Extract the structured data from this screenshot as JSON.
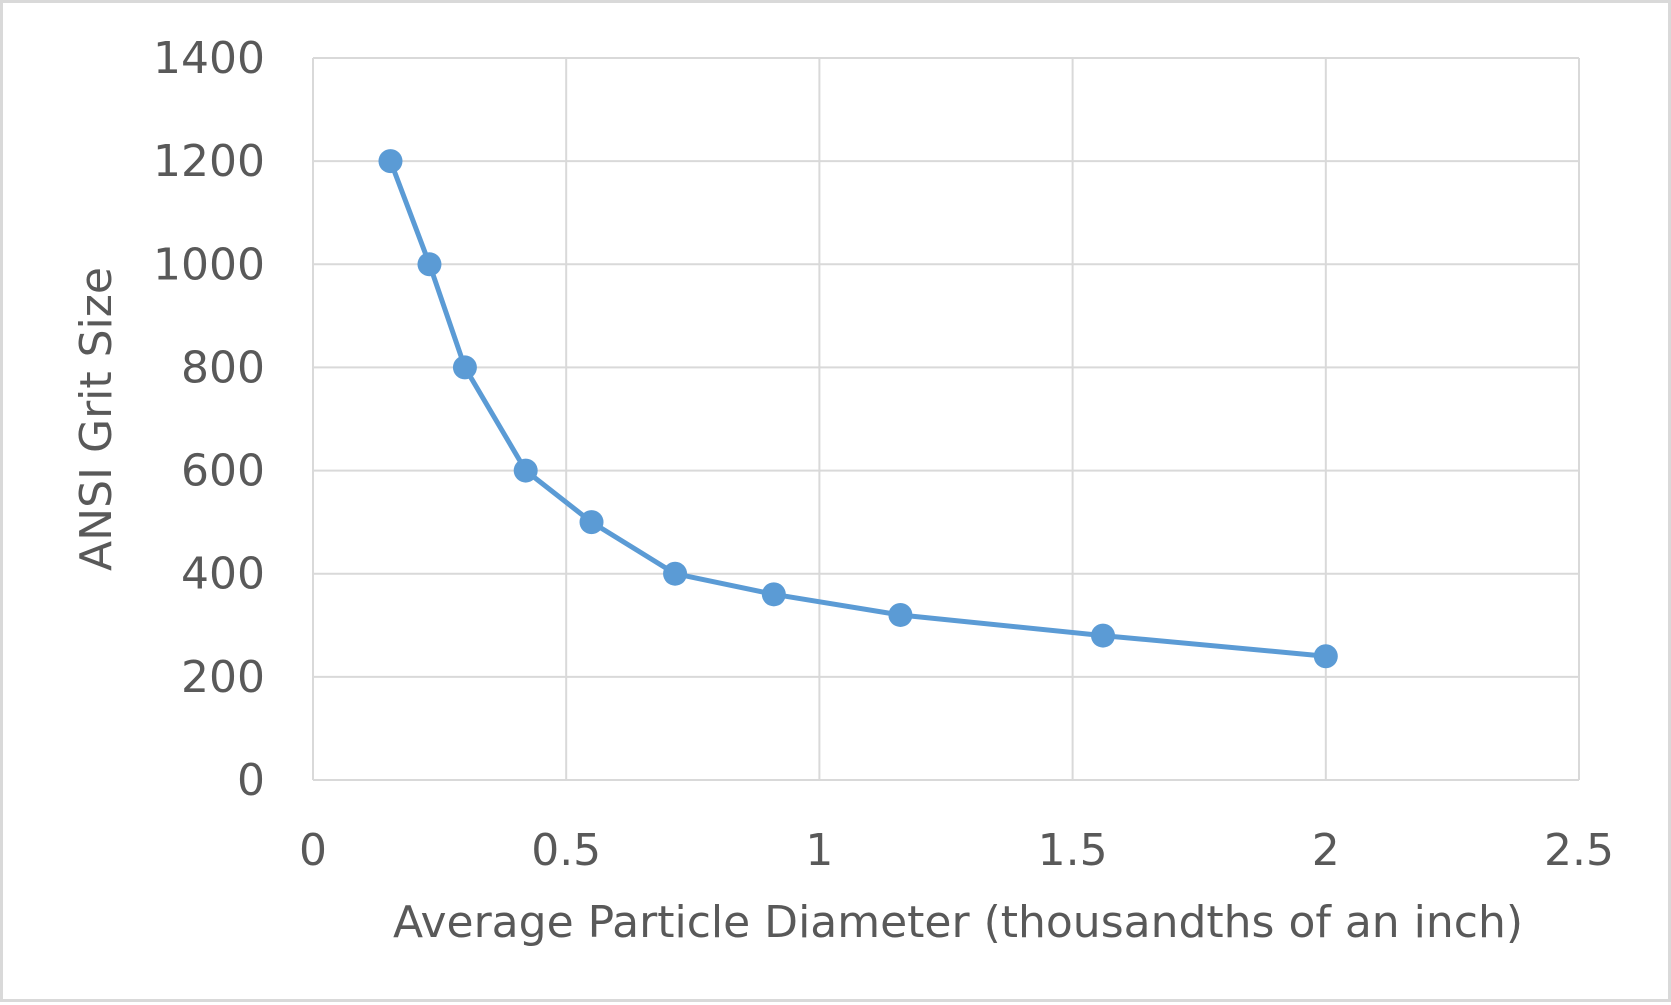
{
  "chart_data": {
    "type": "scatter",
    "title": "",
    "xlabel": "Average Particle Diameter (thousandths of an inch)",
    "ylabel": "ANSI Grit Size",
    "xlim": [
      0,
      2.5
    ],
    "ylim": [
      0,
      1400
    ],
    "x_ticks": [
      0,
      0.5,
      1,
      1.5,
      2,
      2.5
    ],
    "x_tick_labels": [
      "0",
      "0.5",
      "1",
      "1.5",
      "2",
      "2.5"
    ],
    "y_ticks": [
      0,
      200,
      400,
      600,
      800,
      1000,
      1200,
      1400
    ],
    "y_tick_labels": [
      "0",
      "200",
      "400",
      "600",
      "800",
      "1000",
      "1200",
      "1400"
    ],
    "grid": true,
    "legend": "none",
    "series": [
      {
        "color": "#5b9bd5",
        "marker": "circle",
        "line": true,
        "x": [
          0.153,
          0.23,
          0.3,
          0.42,
          0.55,
          0.715,
          0.91,
          1.16,
          1.56,
          2.0
        ],
        "y": [
          1200,
          1000,
          800,
          600,
          500,
          400,
          360,
          320,
          280,
          240
        ]
      }
    ]
  }
}
